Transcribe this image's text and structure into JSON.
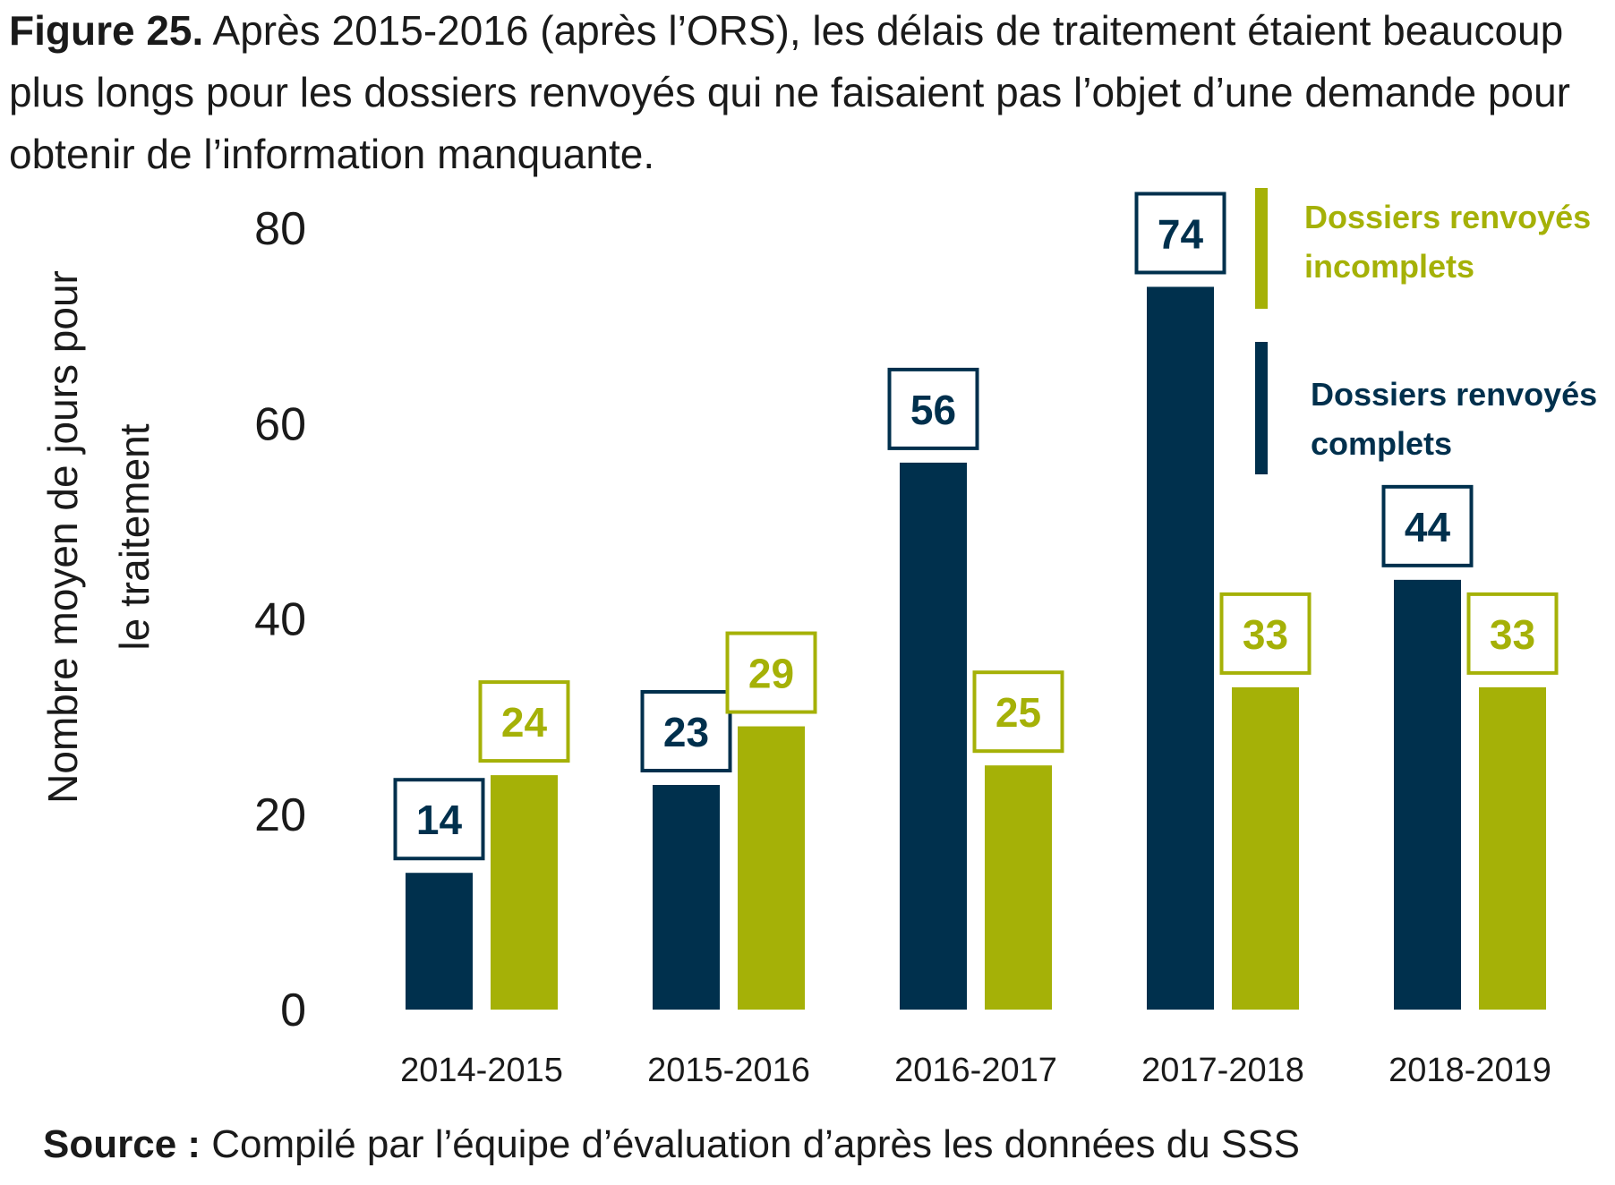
{
  "title": {
    "label": "Figure 25.",
    "text": "Après 2015-2016 (après l’ORS), les délais de traitement étaient beaucoup plus longs pour les dossiers renvoyés qui ne faisaient pas l’objet d’une demande pour obtenir de l’information manquante."
  },
  "source": {
    "label": "Source :",
    "text": "Compilé par l’équipe d’évaluation d’après les données du SSS"
  },
  "colors": {
    "complete": "#00304d",
    "incomplete": "#a5b107"
  },
  "chart_data": {
    "type": "bar",
    "ylabel_line1": "Nombre moyen de jours pour",
    "ylabel_line2": "le traitement",
    "xlabel": "",
    "categories": [
      "2014-2015",
      "2015-2016",
      "2016-2017",
      "2017-2018",
      "2018-2019"
    ],
    "ylim": [
      0,
      80
    ],
    "yticks": [
      0,
      20,
      40,
      60,
      80
    ],
    "grid": false,
    "legend_position": "top-right",
    "series": [
      {
        "name": "Dossiers renvoyés complets",
        "name_line1": "Dossiers renvoyés",
        "name_line2": "complets",
        "values": [
          14,
          23,
          56,
          74,
          44
        ]
      },
      {
        "name": "Dossiers renvoyés incomplets",
        "name_line1": "Dossiers renvoyés",
        "name_line2": "incomplets",
        "values": [
          24,
          29,
          25,
          33,
          33
        ]
      }
    ]
  }
}
